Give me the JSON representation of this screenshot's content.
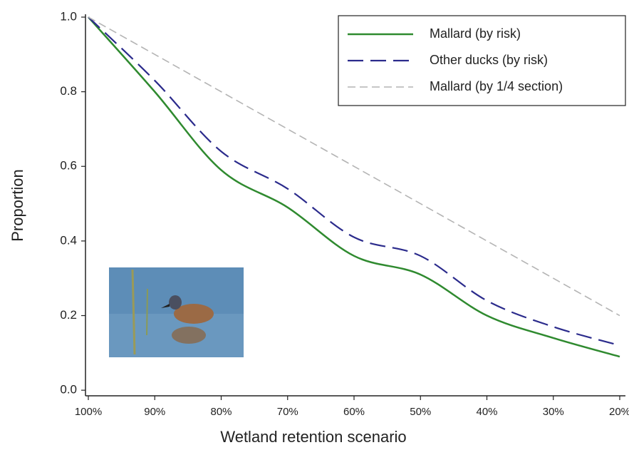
{
  "chart_data": {
    "type": "line",
    "x_label": "Wetland retention scenario",
    "y_label": "Proportion",
    "categories": [
      "100%",
      "90%",
      "80%",
      "70%",
      "60%",
      "50%",
      "40%",
      "30%",
      "20%"
    ],
    "series": [
      {
        "name": "Mallard (by risk)",
        "color": "#2f8a2f",
        "values": [
          1.0,
          0.8,
          0.59,
          0.49,
          0.36,
          0.31,
          0.2,
          0.14,
          0.09
        ]
      },
      {
        "name": "Other ducks (by risk)",
        "color": "#2b2b8c",
        "values": [
          1.0,
          0.83,
          0.64,
          0.54,
          0.41,
          0.36,
          0.24,
          0.17,
          0.12
        ]
      },
      {
        "name": "Mallard (by 1/4 section)",
        "color": "#b4b4b4",
        "values": [
          1.0,
          0.9,
          0.8,
          0.7,
          0.6,
          0.5,
          0.4,
          0.3,
          0.2
        ]
      }
    ],
    "ylim": [
      -0.015,
      1.0
    ],
    "yticks": [
      {
        "value": 0,
        "label": "0.0"
      },
      0.2,
      0.4,
      0.6,
      0.8,
      {
        "value": 1,
        "label": "1.0"
      }
    ],
    "legend": "upper right"
  }
}
